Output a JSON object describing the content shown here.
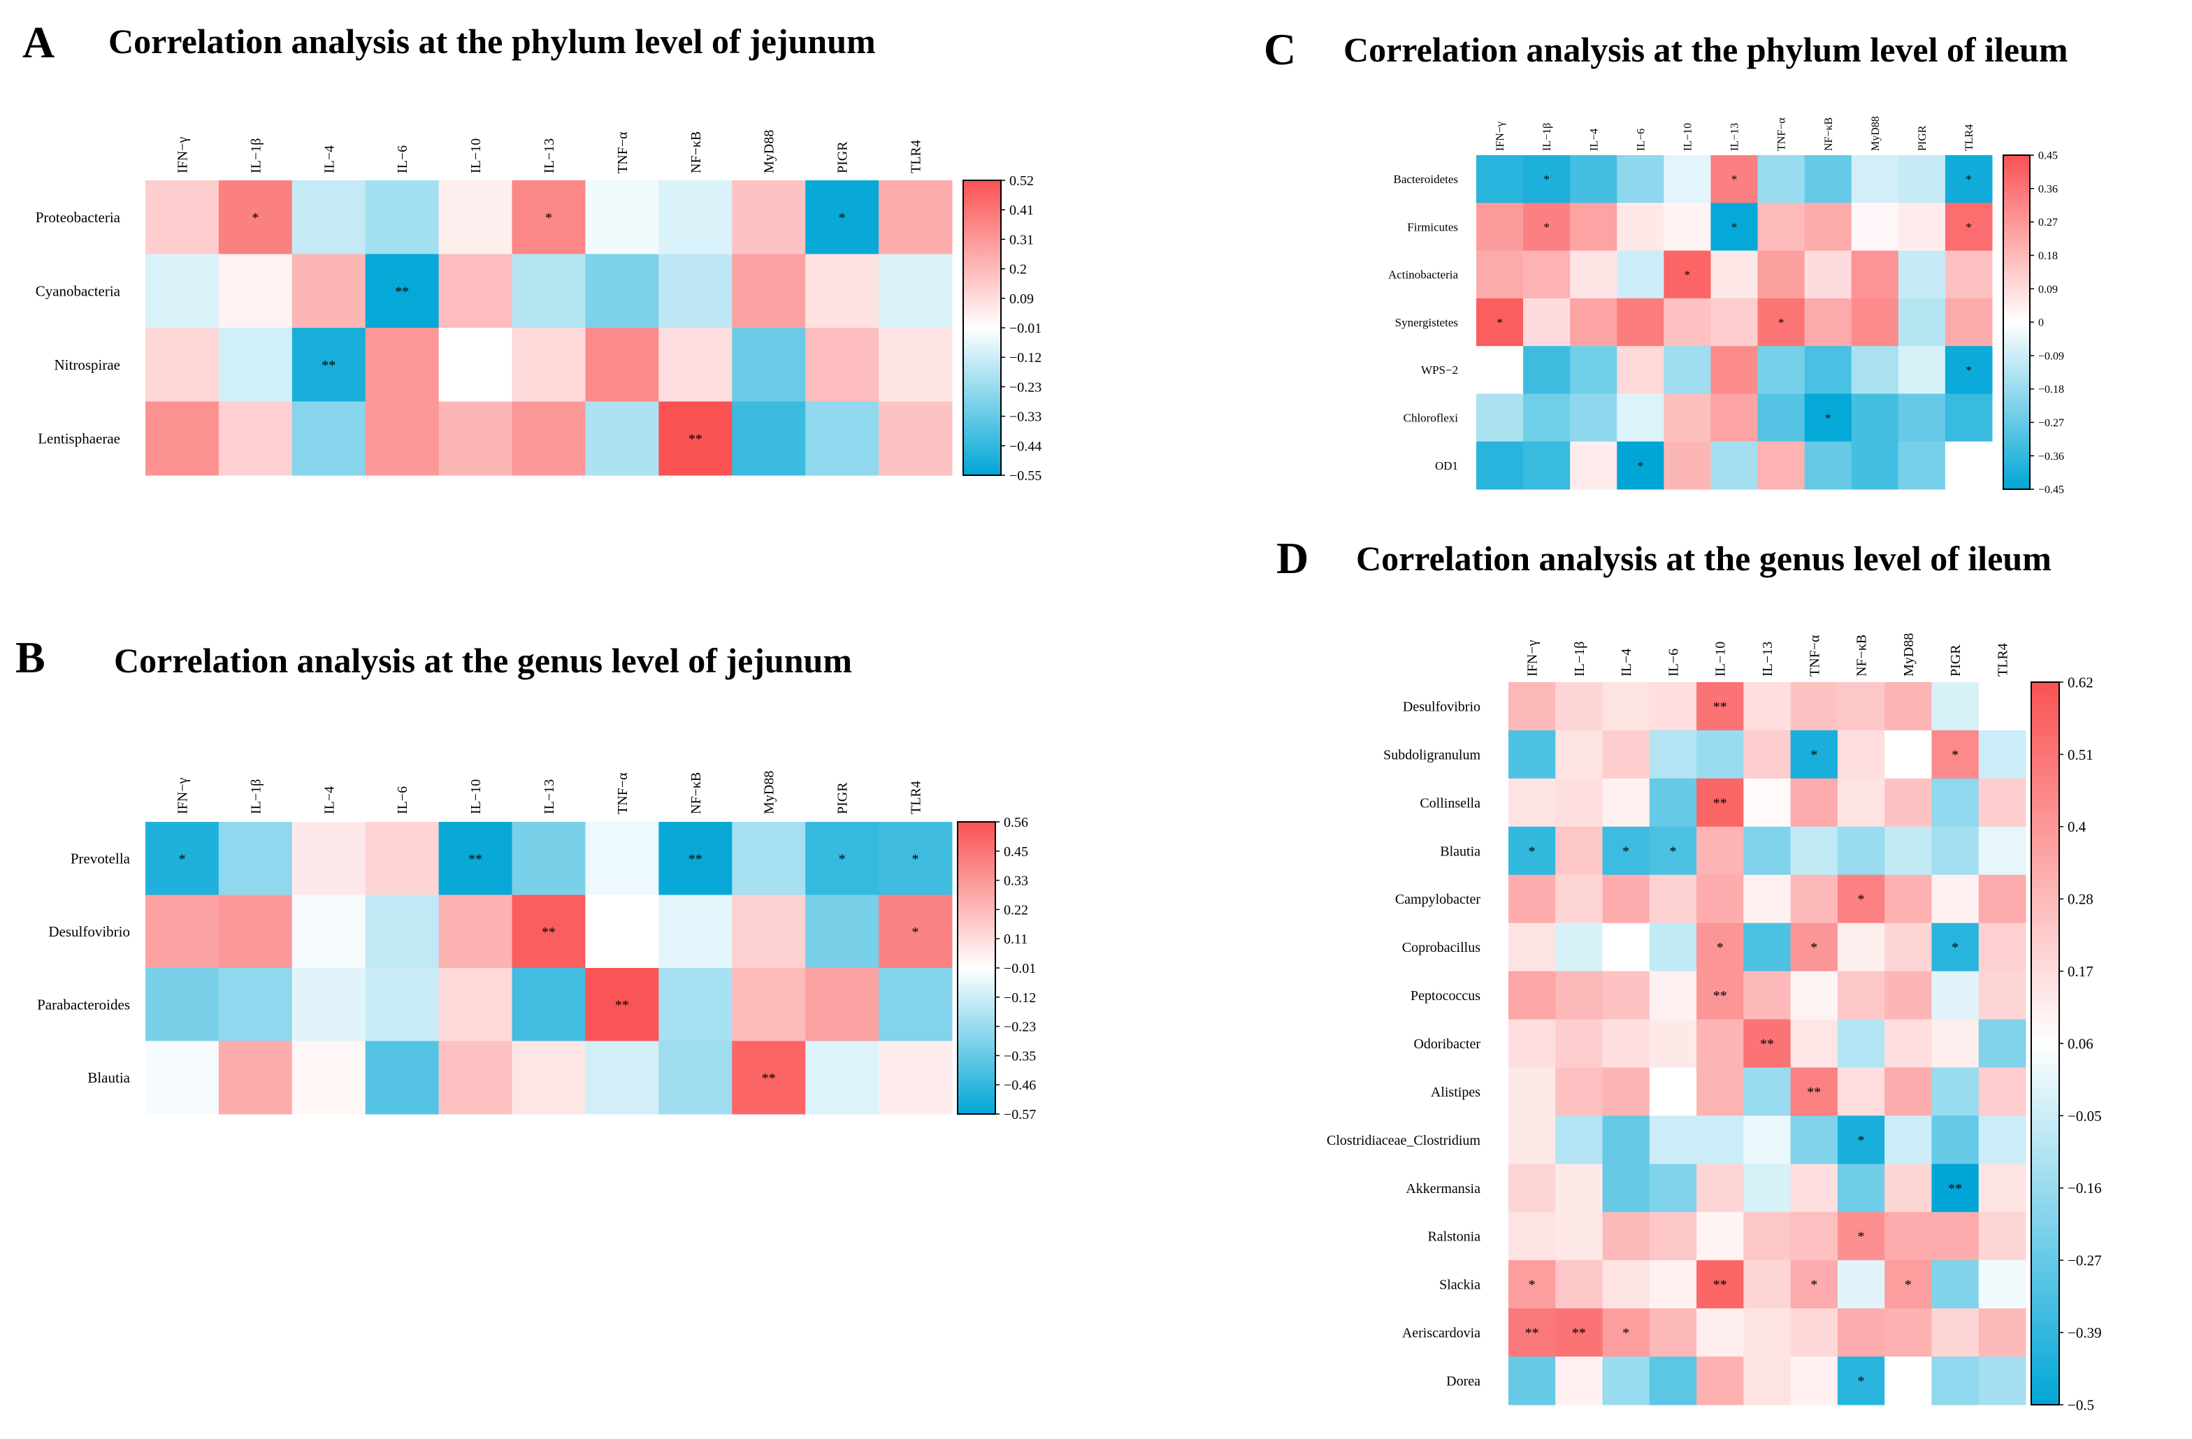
{
  "colors": {
    "low": "#00a6d6",
    "mid": "#ffffff",
    "high": "#fa5253"
  },
  "chart_data": [
    {
      "id": "A",
      "type": "heatmap",
      "letter": "A",
      "title": "Correlation analysis at the phylum level of jejunum",
      "columns": [
        "IFN−γ",
        "IL−1β",
        "IL−4",
        "IL−6",
        "IL−10",
        "IL−13",
        "TNF−α",
        "NF−κB",
        "MyD88",
        "PIGR",
        "TLR4"
      ],
      "rows": [
        "Proteobacteria",
        "Cyanobacteria",
        "Nitrospirae",
        "Lentisphaerae"
      ],
      "values": [
        [
          0.15,
          0.38,
          -0.13,
          -0.2,
          0.05,
          0.36,
          -0.03,
          -0.08,
          0.18,
          -0.53,
          0.25
        ],
        [
          -0.08,
          0.04,
          0.22,
          -0.54,
          0.2,
          -0.16,
          -0.28,
          -0.14,
          0.28,
          0.09,
          -0.08
        ],
        [
          0.12,
          -0.1,
          -0.5,
          0.31,
          0.0,
          0.11,
          0.35,
          0.1,
          -0.32,
          0.2,
          0.08
        ],
        [
          0.33,
          0.14,
          -0.26,
          0.31,
          0.22,
          0.31,
          -0.18,
          0.52,
          -0.42,
          -0.24,
          0.18
        ]
      ],
      "significance": [
        [
          "",
          "*",
          "",
          "",
          "",
          "*",
          "",
          "",
          "",
          "*",
          ""
        ],
        [
          "",
          "",
          "",
          "**",
          "",
          "",
          "",
          "",
          "",
          "",
          ""
        ],
        [
          "",
          "",
          "**",
          "",
          "",
          "",
          "",
          "",
          "",
          "",
          ""
        ],
        [
          "",
          "",
          "",
          "",
          "",
          "",
          "",
          "**",
          "",
          "",
          ""
        ]
      ],
      "range": [
        -0.55,
        0.52
      ],
      "colorbar_ticks": [
        "0.52",
        "0.41",
        "0.31",
        "0.2",
        "0.09",
        "−0.01",
        "−0.12",
        "−0.23",
        "−0.33",
        "−0.44",
        "−0.55"
      ]
    },
    {
      "id": "B",
      "type": "heatmap",
      "letter": "B",
      "title": "Correlation analysis at the genus level of jejunum",
      "columns": [
        "IFN−γ",
        "IL−1β",
        "IL−4",
        "IL−6",
        "IL−10",
        "IL−13",
        "TNF−α",
        "NF−κB",
        "MyD88",
        "PIGR",
        "TLR4"
      ],
      "rows": [
        "Prevotella",
        "Desulfovibrio",
        "Parabacteroides",
        "Blautia"
      ],
      "values": [
        [
          -0.5,
          -0.25,
          0.07,
          0.14,
          -0.55,
          -0.3,
          -0.04,
          -0.55,
          -0.2,
          -0.45,
          -0.43
        ],
        [
          0.3,
          0.33,
          -0.02,
          -0.14,
          0.25,
          0.52,
          0.0,
          -0.06,
          0.15,
          -0.3,
          0.4
        ],
        [
          -0.3,
          -0.25,
          -0.07,
          -0.12,
          0.12,
          -0.42,
          0.55,
          -0.2,
          0.22,
          0.3,
          -0.28
        ],
        [
          -0.02,
          0.27,
          0.03,
          -0.38,
          0.2,
          0.08,
          -0.1,
          -0.22,
          0.5,
          -0.08,
          0.06
        ]
      ],
      "significance": [
        [
          "*",
          "",
          "",
          "",
          "**",
          "",
          "",
          "**",
          "",
          "*",
          "*"
        ],
        [
          "",
          "",
          "",
          "",
          "",
          "**",
          "",
          "",
          "",
          "",
          "*"
        ],
        [
          "",
          "",
          "",
          "",
          "",
          "",
          "**",
          "",
          "",
          "",
          ""
        ],
        [
          "",
          "",
          "",
          "",
          "",
          "",
          "",
          "",
          "**",
          "",
          ""
        ]
      ],
      "range": [
        -0.57,
        0.56
      ],
      "colorbar_ticks": [
        "0.56",
        "0.45",
        "0.33",
        "0.22",
        "0.11",
        "−0.01",
        "−0.12",
        "−0.23",
        "−0.35",
        "−0.46",
        "−0.57"
      ]
    },
    {
      "id": "C",
      "type": "heatmap",
      "letter": "C",
      "title": "Correlation analysis at the phylum level of ileum",
      "columns": [
        "IFN−γ",
        "IL−1β",
        "IL−4",
        "IL−6",
        "IL−10",
        "IL−13",
        "TNF−α",
        "NF−κB",
        "MyD88",
        "PIGR",
        "TLR4"
      ],
      "rows": [
        "Bacteroidetes",
        "Firmicutes",
        "Actinobacteria",
        "Synergistetes",
        "WPS−2",
        "Chloroflexi",
        "OD1"
      ],
      "values": [
        [
          -0.38,
          -0.4,
          -0.33,
          -0.2,
          -0.05,
          0.33,
          -0.18,
          -0.27,
          -0.08,
          -0.1,
          -0.42
        ],
        [
          0.26,
          0.33,
          0.24,
          0.06,
          0.03,
          -0.44,
          0.18,
          0.22,
          0.02,
          0.05,
          0.38
        ],
        [
          0.22,
          0.2,
          0.07,
          -0.09,
          0.4,
          0.06,
          0.25,
          0.09,
          0.28,
          -0.1,
          0.16
        ],
        [
          0.42,
          0.09,
          0.24,
          0.34,
          0.16,
          0.13,
          0.36,
          0.22,
          0.3,
          -0.13,
          0.22
        ],
        [
          0.0,
          -0.34,
          -0.25,
          0.1,
          -0.17,
          0.3,
          -0.24,
          -0.32,
          -0.15,
          -0.07,
          -0.43
        ],
        [
          -0.15,
          -0.25,
          -0.2,
          -0.06,
          0.17,
          0.24,
          -0.3,
          -0.44,
          -0.33,
          -0.27,
          -0.35
        ],
        [
          -0.38,
          -0.35,
          0.05,
          -0.45,
          0.19,
          -0.16,
          0.2,
          -0.27,
          -0.33,
          -0.24,
          0.0
        ]
      ],
      "significance": [
        [
          "",
          "*",
          "",
          "",
          "",
          "*",
          "",
          "",
          "",
          "",
          "*"
        ],
        [
          "",
          "*",
          "",
          "",
          "",
          "*",
          "",
          "",
          "",
          "",
          "*"
        ],
        [
          "",
          "",
          "",
          "",
          "*",
          "",
          "",
          "",
          "",
          "",
          ""
        ],
        [
          "*",
          "",
          "",
          "",
          "",
          "",
          "*",
          "",
          "",
          "",
          ""
        ],
        [
          "",
          "",
          "",
          "",
          "",
          "",
          "",
          "",
          "",
          "",
          "*"
        ],
        [
          "",
          "",
          "",
          "",
          "",
          "",
          "",
          "*",
          "",
          "",
          ""
        ],
        [
          "",
          "",
          "",
          "*",
          "",
          "",
          "",
          "",
          "",
          "",
          ""
        ]
      ],
      "range": [
        -0.45,
        0.45
      ],
      "colorbar_ticks": [
        "0.45",
        "0.36",
        "0.27",
        "0.18",
        "0.09",
        "0",
        "−0.09",
        "−0.18",
        "−0.27",
        "−0.36",
        "−0.45"
      ]
    },
    {
      "id": "D",
      "type": "heatmap",
      "letter": "D",
      "title": "Correlation analysis at the genus level of ileum",
      "columns": [
        "IFN−γ",
        "IL−1β",
        "IL−4",
        "IL−6",
        "IL−10",
        "IL−13",
        "TNF−α",
        "NF−κB",
        "MyD88",
        "PIGR",
        "TLR4"
      ],
      "rows": [
        "Desulfovibrio",
        "Subdoligranulum",
        "Collinsella",
        "Blautia",
        "Campylobacter",
        "Coprobacillus",
        "Peptococcus",
        "Odoribacter",
        "Alistipes",
        "Clostridiaceae_Clostridium",
        "Akkermansia",
        "Ralstonia",
        "Slackia",
        "Aeriscardovia",
        "Dorea"
      ],
      "values": [
        [
          0.25,
          0.15,
          0.1,
          0.12,
          0.5,
          0.12,
          0.22,
          0.2,
          0.27,
          -0.08,
          0.0
        ],
        [
          -0.35,
          0.1,
          0.18,
          -0.15,
          -0.2,
          0.18,
          -0.45,
          0.12,
          0.0,
          0.42,
          -0.1
        ],
        [
          0.1,
          0.12,
          0.05,
          -0.3,
          0.55,
          0.02,
          0.3,
          0.1,
          0.22,
          -0.22,
          0.18
        ],
        [
          -0.4,
          0.2,
          -0.38,
          -0.35,
          0.27,
          -0.25,
          -0.12,
          -0.2,
          -0.12,
          -0.18,
          -0.05
        ],
        [
          0.3,
          0.15,
          0.3,
          0.16,
          0.3,
          0.05,
          0.25,
          0.45,
          0.28,
          0.05,
          0.3
        ],
        [
          0.1,
          -0.08,
          0.0,
          -0.12,
          0.38,
          -0.35,
          0.38,
          0.06,
          0.15,
          -0.42,
          0.17
        ],
        [
          0.32,
          0.25,
          0.22,
          0.05,
          0.38,
          0.25,
          0.04,
          0.2,
          0.26,
          -0.06,
          0.15
        ],
        [
          0.12,
          0.18,
          0.12,
          0.08,
          0.27,
          0.5,
          0.09,
          -0.15,
          0.12,
          0.06,
          -0.25
        ],
        [
          0.08,
          0.23,
          0.27,
          0.0,
          0.27,
          -0.2,
          0.45,
          0.12,
          0.3,
          -0.2,
          0.18
        ],
        [
          0.08,
          -0.15,
          -0.3,
          -0.1,
          -0.1,
          -0.04,
          -0.25,
          -0.45,
          -0.1,
          -0.3,
          -0.1
        ],
        [
          0.15,
          0.08,
          -0.3,
          -0.25,
          0.15,
          -0.08,
          0.12,
          -0.28,
          0.15,
          -0.5,
          0.1
        ],
        [
          0.1,
          0.08,
          0.25,
          0.2,
          0.04,
          0.2,
          0.23,
          0.4,
          0.3,
          0.3,
          0.15
        ],
        [
          0.35,
          0.2,
          0.1,
          0.05,
          0.55,
          0.15,
          0.3,
          -0.06,
          0.35,
          -0.25,
          -0.03
        ],
        [
          0.48,
          0.5,
          0.35,
          0.25,
          0.06,
          0.1,
          0.14,
          0.3,
          0.28,
          0.15,
          0.25
        ],
        [
          -0.3,
          0.05,
          -0.2,
          -0.32,
          0.28,
          0.1,
          0.05,
          -0.42,
          0.0,
          -0.22,
          -0.18
        ]
      ],
      "significance": [
        [
          "",
          "",
          "",
          "",
          "**",
          "",
          "",
          "",
          "",
          "",
          ""
        ],
        [
          "",
          "",
          "",
          "",
          "",
          "",
          "*",
          "",
          "",
          "*",
          ""
        ],
        [
          "",
          "",
          "",
          "",
          "**",
          "",
          "",
          "",
          "",
          "",
          ""
        ],
        [
          "*",
          "",
          "*",
          "*",
          "",
          "",
          "",
          "",
          "",
          "",
          ""
        ],
        [
          "",
          "",
          "",
          "",
          "",
          "",
          "",
          "*",
          "",
          "",
          ""
        ],
        [
          "",
          "",
          "",
          "",
          "*",
          "",
          "*",
          "",
          "",
          "*",
          ""
        ],
        [
          "",
          "",
          "",
          "",
          "**",
          "",
          "",
          "",
          "",
          "",
          ""
        ],
        [
          "",
          "",
          "",
          "",
          "",
          "**",
          "",
          "",
          "",
          "",
          ""
        ],
        [
          "",
          "",
          "",
          "",
          "",
          "",
          "**",
          "",
          "",
          "",
          ""
        ],
        [
          "",
          "",
          "",
          "",
          "",
          "",
          "",
          "*",
          "",
          "",
          ""
        ],
        [
          "",
          "",
          "",
          "",
          "",
          "",
          "",
          "",
          "",
          "**",
          ""
        ],
        [
          "",
          "",
          "",
          "",
          "",
          "",
          "",
          "*",
          "",
          "",
          ""
        ],
        [
          "*",
          "",
          "",
          "",
          "**",
          "",
          "*",
          "",
          "*",
          "",
          ""
        ],
        [
          "**",
          "**",
          "*",
          "",
          "",
          "",
          "",
          "",
          "",
          "",
          ""
        ],
        [
          "",
          "",
          "",
          "",
          "",
          "",
          "",
          "*",
          "",
          "",
          ""
        ]
      ],
      "range": [
        -0.5,
        0.62
      ],
      "colorbar_ticks": [
        "0.62",
        "0.51",
        "0.4",
        "0.28",
        "0.17",
        "0.06",
        "−0.05",
        "−0.16",
        "−0.27",
        "−0.39",
        "−0.5"
      ]
    }
  ]
}
